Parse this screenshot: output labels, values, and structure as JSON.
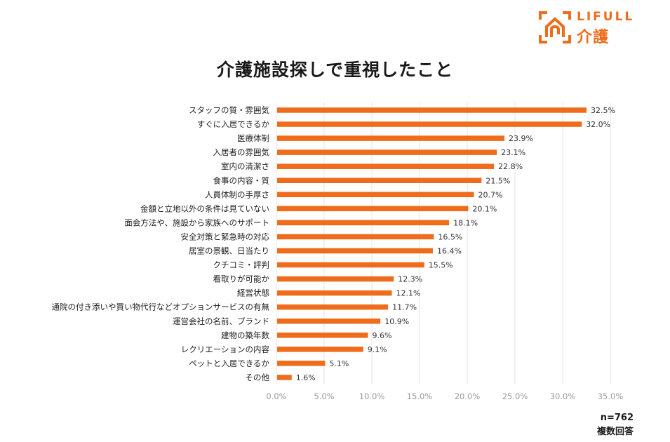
{
  "brand": {
    "name_en": "LIFULL",
    "name_ja": "介護",
    "logo_icon": "house-in-frame-icon",
    "color": "#ee6c1b"
  },
  "notes": {
    "sample_size": "n=762",
    "answer_type": "複数回答"
  },
  "chart_data": {
    "type": "bar",
    "orientation": "horizontal",
    "title": "介護施設探しで重視したこと",
    "xlabel": "",
    "ylabel": "",
    "xlim": [
      0,
      35
    ],
    "x_ticks": [
      "0.0%",
      "5.0%",
      "10.0%",
      "15.0%",
      "20.0%",
      "25.0%",
      "30.0%",
      "35.0%"
    ],
    "x_tick_values": [
      0,
      5,
      10,
      15,
      20,
      25,
      30,
      35
    ],
    "grid": true,
    "bar_color": "#ee6c1b",
    "categories": [
      "スタッフの質・雰囲気",
      "すぐに入居できるか",
      "医療体制",
      "入居者の雰囲気",
      "室内の清潔さ",
      "食事の内容・質",
      "人員体制の手厚さ",
      "金額と立地以外の条件は見ていない",
      "面会方法や、施設から家族へのサポート",
      "安全対策と緊急時の対応",
      "居室の景観、日当たり",
      "クチコミ・評判",
      "看取りが可能か",
      "経営状態",
      "通院の付き添いや買い物代行などオプションサービスの有無",
      "運営会社の名前、ブランド",
      "建物の築年数",
      "レクリエーションの内容",
      "ペットと入居できるか",
      "その他"
    ],
    "values": [
      32.5,
      32.0,
      23.9,
      23.1,
      22.8,
      21.5,
      20.7,
      20.1,
      18.1,
      16.5,
      16.4,
      15.5,
      12.3,
      12.1,
      11.7,
      10.9,
      9.6,
      9.1,
      5.1,
      1.6
    ],
    "value_labels": [
      "32.5%",
      "32.0%",
      "23.9%",
      "23.1%",
      "22.8%",
      "21.5%",
      "20.7%",
      "20.1%",
      "18.1%",
      "16.5%",
      "16.4%",
      "15.5%",
      "12.3%",
      "12.1%",
      "11.7%",
      "10.9%",
      "9.6%",
      "9.1%",
      "5.1%",
      "1.6%"
    ]
  }
}
